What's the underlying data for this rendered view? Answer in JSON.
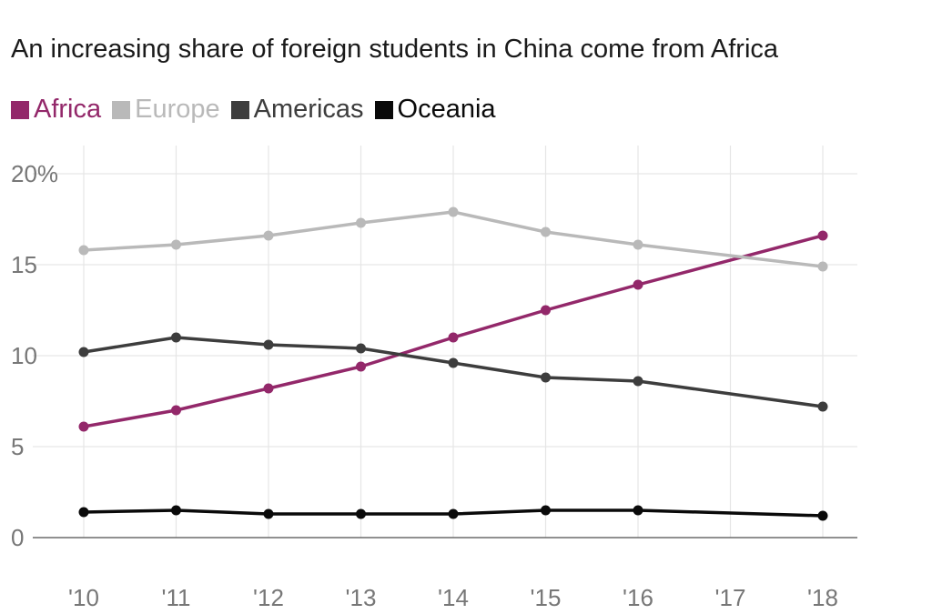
{
  "title": "An increasing share of foreign students in China come from Africa",
  "chart_data": {
    "type": "line",
    "title": "An increasing share of foreign students in China come from Africa",
    "x": [
      "'10",
      "'11",
      "'12",
      "'13",
      "'14",
      "'15",
      "'16",
      "'17",
      "'18"
    ],
    "y_ticks": [
      "0",
      "5",
      "10",
      "15",
      "20%"
    ],
    "ylim": [
      0,
      20
    ],
    "grid": true,
    "legend_position": "top-left",
    "series": [
      {
        "name": "Africa",
        "color": "#93286a",
        "values": [
          6.1,
          7.0,
          8.2,
          9.4,
          11.0,
          12.5,
          13.9,
          null,
          16.6
        ],
        "markers": [
          true,
          true,
          true,
          true,
          true,
          true,
          true,
          false,
          true
        ]
      },
      {
        "name": "Europe",
        "color": "#b9b9b9",
        "values": [
          15.8,
          16.1,
          16.6,
          17.3,
          17.9,
          16.8,
          16.1,
          null,
          14.9
        ],
        "markers": [
          true,
          true,
          true,
          true,
          true,
          true,
          true,
          false,
          true
        ]
      },
      {
        "name": "Americas",
        "color": "#3d3d3d",
        "values": [
          10.2,
          11.0,
          10.6,
          10.4,
          9.6,
          8.8,
          8.6,
          null,
          7.2
        ],
        "markers": [
          true,
          true,
          true,
          true,
          true,
          true,
          true,
          false,
          true
        ]
      },
      {
        "name": "Oceania",
        "color": "#0a0a0a",
        "values": [
          1.4,
          1.5,
          1.3,
          1.3,
          1.3,
          1.5,
          1.5,
          null,
          1.2
        ],
        "markers": [
          true,
          true,
          true,
          true,
          true,
          true,
          true,
          false,
          true
        ]
      }
    ]
  }
}
